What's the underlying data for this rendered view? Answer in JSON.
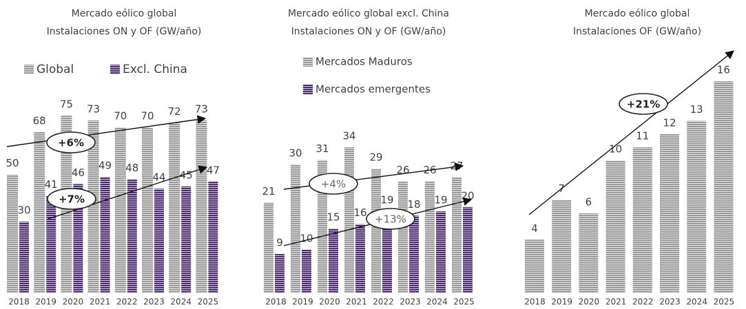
{
  "chart_data": [
    {
      "type": "bar",
      "title": "Mercado eólico global",
      "subtitle": "Instalaciones ON y OF (GW/año)",
      "categories": [
        "2018",
        "2019",
        "2020",
        "2021",
        "2022",
        "2023",
        "2024",
        "2025"
      ],
      "series": [
        {
          "name": "Global",
          "color": "#9a9a9a",
          "values": [
            50,
            68,
            75,
            73,
            70,
            70,
            72,
            73
          ]
        },
        {
          "name": "Excl. China",
          "color": "#4b2c70",
          "values": [
            30,
            41,
            46,
            49,
            48,
            44,
            45,
            47
          ]
        }
      ],
      "annotations": [
        "+6%",
        "+7%"
      ]
    },
    {
      "type": "bar",
      "title": "Mercado eólico global excl. China",
      "subtitle": "Instalaciones ON y OF (GW/año)",
      "categories": [
        "2018",
        "2019",
        "2020",
        "2021",
        "2022",
        "2023",
        "2024",
        "2025"
      ],
      "series": [
        {
          "name": "Mercados Maduros",
          "color": "#9a9a9a",
          "values": [
            21,
            30,
            31,
            34,
            29,
            26,
            26,
            27
          ]
        },
        {
          "name": "Mercados emergentes",
          "color": "#4b2c70",
          "values": [
            9,
            10,
            15,
            16,
            19,
            18,
            19,
            20
          ]
        }
      ],
      "annotations": [
        "+4%",
        "+13%"
      ]
    },
    {
      "type": "bar",
      "title": "Mercado eólico global",
      "subtitle": "Instalaciones OF (GW/año)",
      "categories": [
        "2018",
        "2019",
        "2020",
        "2021",
        "2022",
        "2023",
        "2024",
        "2025"
      ],
      "color": "#9a9a9a",
      "values": [
        4,
        7,
        6,
        10,
        11,
        12,
        13,
        16
      ],
      "annotations": [
        "+21%"
      ]
    }
  ]
}
